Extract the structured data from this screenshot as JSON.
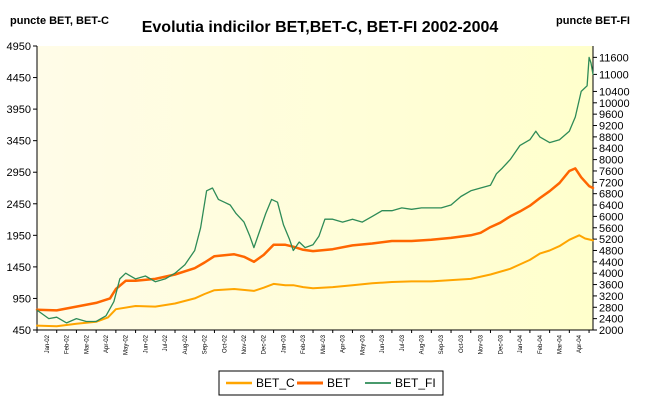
{
  "chart_data": {
    "type": "line",
    "title": "Evolutia indicilor BET,BET-C, BET-FI 2002-2004",
    "y_left_label": "puncte BET, BET-C",
    "y_right_label": "puncte BET-FI",
    "y_left": {
      "min": 450,
      "max": 4950,
      "ticks": [
        450,
        950,
        1450,
        1950,
        2450,
        2950,
        3450,
        3950,
        4450,
        4950
      ]
    },
    "y_right": {
      "min": 2000,
      "max": 12000,
      "ticks": [
        2000,
        2400,
        2800,
        3200,
        3600,
        4000,
        4400,
        4800,
        5200,
        5600,
        6000,
        6400,
        6800,
        7200,
        7600,
        8000,
        8400,
        8800,
        9200,
        9600,
        10000,
        10400,
        11000,
        11600
      ]
    },
    "x_labels": [
      "Jan-02",
      "Feb-02",
      "Mar-02",
      "Apr-02",
      "May-02",
      "Jun-02",
      "Jul-02",
      "Aug-02",
      "Sep-02",
      "Oct-02",
      "Nov-02",
      "Dec-02",
      "Jan-03",
      "Feb-03",
      "Mar-03",
      "Apr-03",
      "May-03",
      "Jun-03",
      "Jul-03",
      "Aug-03",
      "Sep-03",
      "Oct-03",
      "Nov-03",
      "Dec-03",
      "Jan-04",
      "Feb-04",
      "Mar-04",
      "Apr-04"
    ],
    "x_label_positions": [
      0.5,
      1.5,
      2.5,
      3.5,
      4.5,
      5.5,
      6.5,
      7.5,
      8.5,
      9.5,
      10.5,
      11.5,
      12.5,
      13.5,
      14.5,
      15.5,
      16.5,
      17.5,
      18.5,
      19.5,
      20.5,
      21.5,
      22.5,
      23.5,
      24.5,
      25.5,
      26.5,
      27.5
    ],
    "x_range": [
      0,
      28.2
    ],
    "series": [
      {
        "name": "BET_C",
        "axis": "left",
        "color": "#FFA500",
        "width": 2,
        "points": [
          [
            0,
            520
          ],
          [
            1,
            510
          ],
          [
            2,
            550
          ],
          [
            3,
            580
          ],
          [
            3.6,
            650
          ],
          [
            4,
            780
          ],
          [
            5,
            830
          ],
          [
            6,
            820
          ],
          [
            7,
            870
          ],
          [
            8,
            950
          ],
          [
            8.5,
            1020
          ],
          [
            9,
            1080
          ],
          [
            10,
            1100
          ],
          [
            11,
            1070
          ],
          [
            11.5,
            1120
          ],
          [
            12,
            1180
          ],
          [
            12.6,
            1160
          ],
          [
            13,
            1160
          ],
          [
            13.5,
            1130
          ],
          [
            14,
            1110
          ],
          [
            15,
            1130
          ],
          [
            16,
            1160
          ],
          [
            17,
            1190
          ],
          [
            18,
            1210
          ],
          [
            19,
            1220
          ],
          [
            20,
            1220
          ],
          [
            21,
            1240
          ],
          [
            22,
            1260
          ],
          [
            23,
            1330
          ],
          [
            24,
            1420
          ],
          [
            24.5,
            1490
          ],
          [
            25,
            1560
          ],
          [
            25.5,
            1660
          ],
          [
            26,
            1710
          ],
          [
            26.5,
            1780
          ],
          [
            27,
            1880
          ],
          [
            27.5,
            1950
          ],
          [
            27.8,
            1900
          ],
          [
            28.2,
            1870
          ]
        ]
      },
      {
        "name": "BET",
        "axis": "left",
        "color": "#FF6600",
        "width": 2.5,
        "points": [
          [
            0,
            770
          ],
          [
            1,
            760
          ],
          [
            2,
            820
          ],
          [
            3,
            880
          ],
          [
            3.7,
            950
          ],
          [
            4,
            1100
          ],
          [
            4.5,
            1230
          ],
          [
            5,
            1230
          ],
          [
            6,
            1260
          ],
          [
            7,
            1330
          ],
          [
            8,
            1430
          ],
          [
            8.5,
            1520
          ],
          [
            9,
            1620
          ],
          [
            10,
            1650
          ],
          [
            10.5,
            1610
          ],
          [
            11,
            1530
          ],
          [
            11.5,
            1640
          ],
          [
            12,
            1800
          ],
          [
            12.6,
            1800
          ],
          [
            13,
            1770
          ],
          [
            13.5,
            1720
          ],
          [
            14,
            1700
          ],
          [
            15,
            1730
          ],
          [
            16,
            1790
          ],
          [
            17,
            1820
          ],
          [
            18,
            1860
          ],
          [
            19,
            1860
          ],
          [
            20,
            1880
          ],
          [
            21,
            1910
          ],
          [
            22,
            1950
          ],
          [
            22.5,
            1990
          ],
          [
            23,
            2080
          ],
          [
            23.5,
            2150
          ],
          [
            24,
            2250
          ],
          [
            24.5,
            2330
          ],
          [
            25,
            2420
          ],
          [
            25.5,
            2540
          ],
          [
            26,
            2650
          ],
          [
            26.5,
            2780
          ],
          [
            27,
            2970
          ],
          [
            27.3,
            3010
          ],
          [
            27.6,
            2870
          ],
          [
            28,
            2730
          ],
          [
            28.2,
            2700
          ]
        ]
      },
      {
        "name": "BET_FI",
        "axis": "right",
        "color": "#2E8B57",
        "width": 1.3,
        "points": [
          [
            0,
            2700
          ],
          [
            0.3,
            2550
          ],
          [
            0.6,
            2400
          ],
          [
            1,
            2450
          ],
          [
            1.5,
            2250
          ],
          [
            2,
            2400
          ],
          [
            2.5,
            2300
          ],
          [
            3,
            2300
          ],
          [
            3.5,
            2500
          ],
          [
            3.9,
            3000
          ],
          [
            4.2,
            3800
          ],
          [
            4.5,
            4000
          ],
          [
            5,
            3800
          ],
          [
            5.5,
            3900
          ],
          [
            6,
            3700
          ],
          [
            6.5,
            3800
          ],
          [
            7,
            4000
          ],
          [
            7.5,
            4300
          ],
          [
            8,
            4800
          ],
          [
            8.3,
            5600
          ],
          [
            8.6,
            6900
          ],
          [
            8.9,
            7000
          ],
          [
            9.2,
            6600
          ],
          [
            9.5,
            6500
          ],
          [
            9.8,
            6400
          ],
          [
            10.1,
            6100
          ],
          [
            10.5,
            5800
          ],
          [
            10.8,
            5300
          ],
          [
            11,
            4900
          ],
          [
            11.3,
            5500
          ],
          [
            11.6,
            6100
          ],
          [
            11.9,
            6600
          ],
          [
            12.2,
            6500
          ],
          [
            12.5,
            5700
          ],
          [
            12.8,
            5200
          ],
          [
            13,
            4800
          ],
          [
            13.3,
            5100
          ],
          [
            13.6,
            4900
          ],
          [
            14,
            5000
          ],
          [
            14.3,
            5300
          ],
          [
            14.6,
            5900
          ],
          [
            15,
            5900
          ],
          [
            15.5,
            5800
          ],
          [
            16,
            5900
          ],
          [
            16.5,
            5800
          ],
          [
            17,
            6000
          ],
          [
            17.5,
            6200
          ],
          [
            18,
            6200
          ],
          [
            18.5,
            6300
          ],
          [
            19,
            6250
          ],
          [
            19.5,
            6300
          ],
          [
            20,
            6300
          ],
          [
            20.5,
            6300
          ],
          [
            21,
            6400
          ],
          [
            21.5,
            6700
          ],
          [
            22,
            6900
          ],
          [
            22.5,
            7000
          ],
          [
            23,
            7100
          ],
          [
            23.3,
            7500
          ],
          [
            23.6,
            7700
          ],
          [
            24,
            8000
          ],
          [
            24.5,
            8500
          ],
          [
            25,
            8700
          ],
          [
            25.3,
            9000
          ],
          [
            25.5,
            8800
          ],
          [
            26,
            8600
          ],
          [
            26.5,
            8700
          ],
          [
            27,
            9000
          ],
          [
            27.3,
            9500
          ],
          [
            27.6,
            10400
          ],
          [
            27.9,
            10600
          ],
          [
            28,
            11600
          ],
          [
            28.1,
            11400
          ],
          [
            28.2,
            11000
          ]
        ]
      }
    ],
    "legend": [
      "BET_C",
      "BET",
      "BET_FI"
    ],
    "legend_position": "bottom",
    "grid": false
  }
}
